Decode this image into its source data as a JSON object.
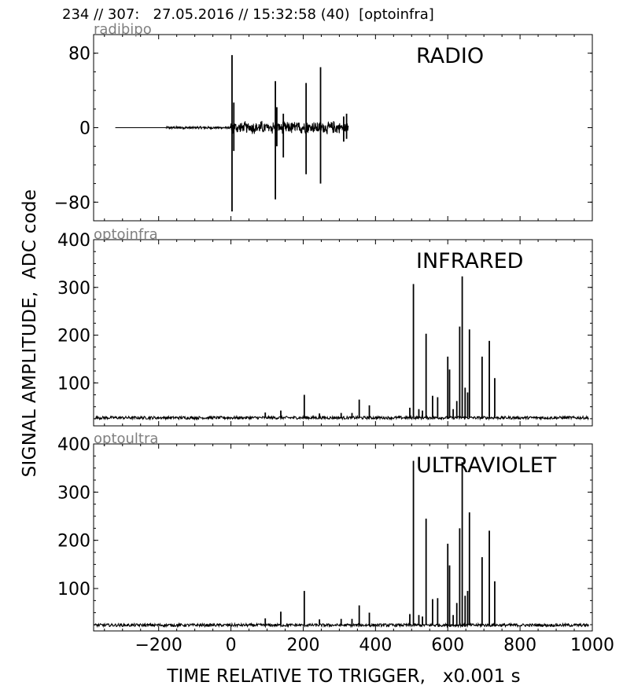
{
  "header": "234 // 307:   27.05.2016 // 15:32:58 (40)  [optoinfra]",
  "ylabel": "SIGNAL AMPLITUDE,  ADC code",
  "xlabel": "TIME RELATIVE TO TRIGGER,   x0.001 s",
  "chart_data": [
    {
      "type": "line",
      "channel": "radibipo",
      "title": "RADIO",
      "xlim": [
        -380,
        1000
      ],
      "ylim": [
        -100,
        100
      ],
      "yticks": [
        -80,
        0,
        80
      ],
      "xticks": [
        -200,
        0,
        200,
        400,
        600,
        800,
        1000
      ],
      "baseline": 0,
      "flat_segment": [
        -320,
        -180
      ],
      "noise_segment": [
        -180,
        325
      ],
      "spikes": [
        {
          "x": 3,
          "top": 78,
          "bottom": -90
        },
        {
          "x": 8,
          "top": 27,
          "bottom": -25
        },
        {
          "x": 123,
          "top": 50,
          "bottom": -77
        },
        {
          "x": 127,
          "top": 22,
          "bottom": -20
        },
        {
          "x": 145,
          "top": 15,
          "bottom": -32
        },
        {
          "x": 208,
          "top": 48,
          "bottom": -50
        },
        {
          "x": 248,
          "top": 65,
          "bottom": -60
        },
        {
          "x": 312,
          "top": 12,
          "bottom": -15
        },
        {
          "x": 320,
          "top": 15,
          "bottom": -12
        }
      ]
    },
    {
      "type": "line",
      "channel": "optoinfra",
      "title": "INFRARED",
      "xlim": [
        -380,
        1000
      ],
      "ylim": [
        10,
        400
      ],
      "yticks": [
        100,
        200,
        300,
        400
      ],
      "xticks": [
        -200,
        0,
        200,
        400,
        600,
        800,
        1000
      ],
      "baseline": 27,
      "spikes": [
        {
          "x": 95,
          "y": 38
        },
        {
          "x": 138,
          "y": 42
        },
        {
          "x": 203,
          "y": 75
        },
        {
          "x": 245,
          "y": 36
        },
        {
          "x": 305,
          "y": 37
        },
        {
          "x": 335,
          "y": 37
        },
        {
          "x": 355,
          "y": 65
        },
        {
          "x": 383,
          "y": 53
        },
        {
          "x": 495,
          "y": 48
        },
        {
          "x": 505,
          "y": 307
        },
        {
          "x": 520,
          "y": 45
        },
        {
          "x": 530,
          "y": 42
        },
        {
          "x": 540,
          "y": 203
        },
        {
          "x": 558,
          "y": 73
        },
        {
          "x": 572,
          "y": 70
        },
        {
          "x": 600,
          "y": 155
        },
        {
          "x": 605,
          "y": 128
        },
        {
          "x": 615,
          "y": 45
        },
        {
          "x": 625,
          "y": 62
        },
        {
          "x": 633,
          "y": 218
        },
        {
          "x": 640,
          "y": 323
        },
        {
          "x": 648,
          "y": 90
        },
        {
          "x": 655,
          "y": 80
        },
        {
          "x": 660,
          "y": 212
        },
        {
          "x": 695,
          "y": 155
        },
        {
          "x": 715,
          "y": 188
        },
        {
          "x": 730,
          "y": 110
        }
      ]
    },
    {
      "type": "line",
      "channel": "optoultra",
      "title": "ULTRAVIOLET",
      "xlim": [
        -380,
        1000
      ],
      "ylim": [
        12,
        400
      ],
      "yticks": [
        100,
        200,
        300,
        400
      ],
      "xticks": [
        -200,
        0,
        200,
        400,
        600,
        800,
        1000
      ],
      "baseline": 24,
      "spikes": [
        {
          "x": 95,
          "y": 38
        },
        {
          "x": 138,
          "y": 52
        },
        {
          "x": 203,
          "y": 95
        },
        {
          "x": 245,
          "y": 36
        },
        {
          "x": 305,
          "y": 37
        },
        {
          "x": 335,
          "y": 37
        },
        {
          "x": 355,
          "y": 65
        },
        {
          "x": 383,
          "y": 50
        },
        {
          "x": 495,
          "y": 47
        },
        {
          "x": 505,
          "y": 365
        },
        {
          "x": 520,
          "y": 45
        },
        {
          "x": 530,
          "y": 42
        },
        {
          "x": 540,
          "y": 245
        },
        {
          "x": 558,
          "y": 78
        },
        {
          "x": 572,
          "y": 80
        },
        {
          "x": 600,
          "y": 193
        },
        {
          "x": 605,
          "y": 148
        },
        {
          "x": 615,
          "y": 45
        },
        {
          "x": 625,
          "y": 70
        },
        {
          "x": 633,
          "y": 225
        },
        {
          "x": 640,
          "y": 362
        },
        {
          "x": 648,
          "y": 85
        },
        {
          "x": 655,
          "y": 95
        },
        {
          "x": 660,
          "y": 258
        },
        {
          "x": 695,
          "y": 165
        },
        {
          "x": 715,
          "y": 220
        },
        {
          "x": 730,
          "y": 115
        }
      ]
    }
  ]
}
